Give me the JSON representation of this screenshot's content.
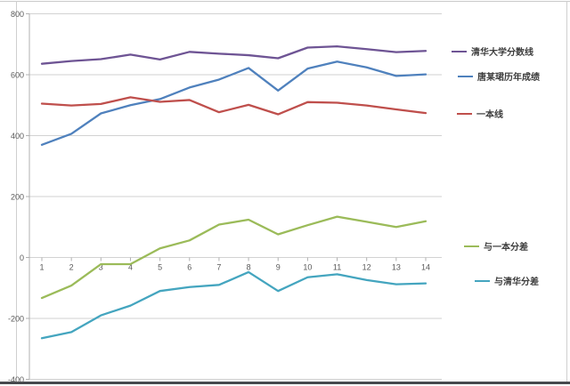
{
  "chart_data": {
    "type": "line",
    "title": "",
    "xlabel": "",
    "ylabel": "",
    "categories": [
      "1",
      "2",
      "3",
      "4",
      "5",
      "6",
      "7",
      "8",
      "9",
      "10",
      "11",
      "12",
      "13",
      "14"
    ],
    "y_tick_labels": [
      "800",
      "600",
      "400",
      "200",
      "0",
      "-200",
      "-400"
    ],
    "y_tick_values": [
      800,
      600,
      400,
      200,
      0,
      -200,
      -400
    ],
    "ylim": [
      -400,
      800
    ],
    "grid": "horizontal",
    "legend_position": "right-of-plot",
    "series": [
      {
        "name": "清华大学分数线",
        "color": "#6e5494",
        "values": [
          636,
          645,
          651,
          666,
          650,
          675,
          669,
          664,
          654,
          689,
          693,
          684,
          674,
          678
        ]
      },
      {
        "name": "唐某珺历年成绩",
        "color": "#4f81bd",
        "values": [
          370,
          406,
          473,
          500,
          520,
          558,
          584,
          622,
          548,
          620,
          643,
          624,
          596,
          601
        ]
      },
      {
        "name": "一本线",
        "color": "#bf4f4c",
        "values": [
          505,
          499,
          504,
          526,
          511,
          517,
          477,
          501,
          470,
          510,
          508,
          499,
          486,
          474
        ]
      },
      {
        "name": "与一本分差",
        "color": "#9bbb59",
        "values": [
          -133,
          -92,
          -22,
          -22,
          30,
          56,
          108,
          124,
          76,
          106,
          134,
          117,
          100,
          119
        ]
      },
      {
        "name": "与清华分差",
        "color": "#44a5bf",
        "values": [
          -265,
          -245,
          -190,
          -158,
          -110,
          -97,
          -90,
          -48,
          -110,
          -65,
          -55,
          -74,
          -88,
          -85
        ]
      }
    ]
  },
  "style": {
    "gridline_color": "#d2d2d2",
    "axis_color": "#b0b0b0",
    "tick_label_color": "#595959"
  }
}
